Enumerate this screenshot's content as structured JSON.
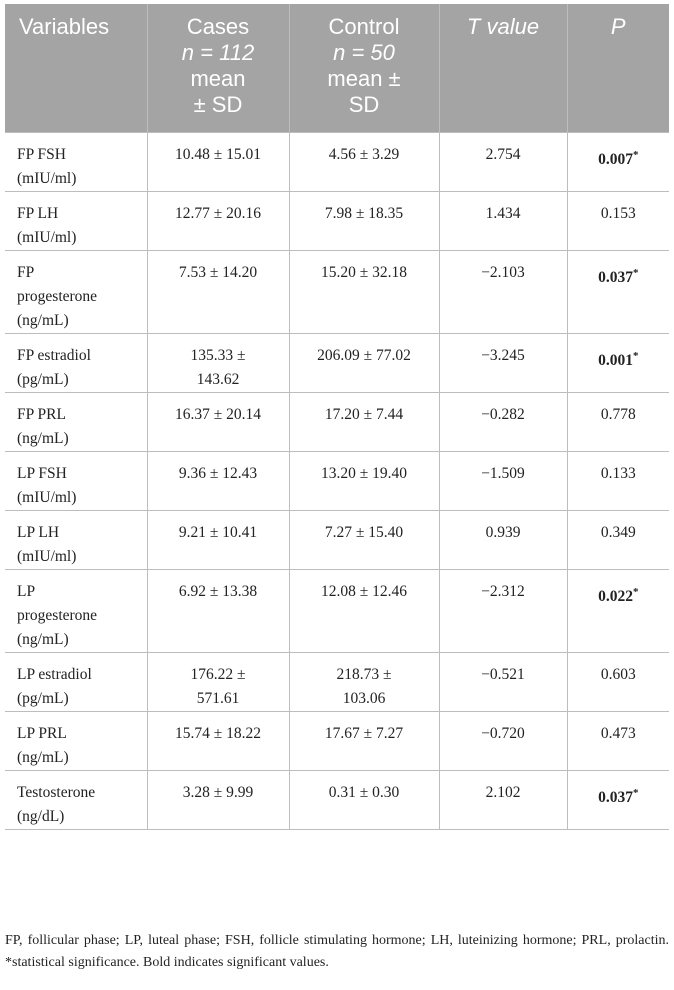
{
  "header": {
    "variables": "Variables",
    "cases": {
      "l1": "Cases",
      "l2": "n = 112",
      "l3": "mean",
      "l4": "± SD"
    },
    "control": {
      "l1": "Control",
      "l2": "n = 50",
      "l3": "mean ±",
      "l4": "SD"
    },
    "tvalue": "T value",
    "p": "P"
  },
  "rows": [
    {
      "variable": [
        "FP FSH",
        "(mIU/ml)"
      ],
      "cases": [
        "10.48 ± 15.01"
      ],
      "control": [
        "4.56 ± 3.29"
      ],
      "t": "2.754",
      "p": "0.007",
      "sig": true
    },
    {
      "variable": [
        "FP LH",
        "(mIU/ml)"
      ],
      "cases": [
        "12.77 ± 20.16"
      ],
      "control": [
        "7.98 ± 18.35"
      ],
      "t": "1.434",
      "p": "0.153",
      "sig": false
    },
    {
      "variable": [
        "FP",
        "progesterone",
        "(ng/mL)"
      ],
      "cases": [
        "7.53 ± 14.20"
      ],
      "control": [
        "15.20 ± 32.18"
      ],
      "t": "−2.103",
      "p": "0.037",
      "sig": true
    },
    {
      "variable": [
        "FP estradiol",
        "(pg/mL)"
      ],
      "cases": [
        "135.33 ±",
        "143.62"
      ],
      "control": [
        "206.09 ± 77.02"
      ],
      "t": "−3.245",
      "p": "0.001",
      "sig": true
    },
    {
      "variable": [
        "FP PRL",
        "(ng/mL)"
      ],
      "cases": [
        "16.37 ± 20.14"
      ],
      "control": [
        "17.20 ± 7.44"
      ],
      "t": "−0.282",
      "p": "0.778",
      "sig": false
    },
    {
      "variable": [
        "LP FSH",
        "(mIU/ml)"
      ],
      "cases": [
        "9.36 ± 12.43"
      ],
      "control": [
        "13.20 ± 19.40"
      ],
      "t": "−1.509",
      "p": "0.133",
      "sig": false
    },
    {
      "variable": [
        "LP LH",
        "(mIU/ml)"
      ],
      "cases": [
        "9.21 ± 10.41"
      ],
      "control": [
        "7.27 ± 15.40"
      ],
      "t": "0.939",
      "p": "0.349",
      "sig": false
    },
    {
      "variable": [
        "LP",
        "progesterone",
        "(ng/mL)"
      ],
      "cases": [
        "6.92 ± 13.38"
      ],
      "control": [
        "12.08 ± 12.46"
      ],
      "t": "−2.312",
      "p": "0.022",
      "sig": true
    },
    {
      "variable": [
        "LP estradiol",
        "(pg/mL)"
      ],
      "cases": [
        "176.22 ±",
        "571.61"
      ],
      "control": [
        "218.73 ±",
        "103.06"
      ],
      "t": "−0.521",
      "p": "0.603",
      "sig": false
    },
    {
      "variable": [
        "LP PRL",
        "(ng/mL)"
      ],
      "cases": [
        "15.74 ± 18.22"
      ],
      "control": [
        "17.67 ± 7.27"
      ],
      "t": "−0.720",
      "p": "0.473",
      "sig": false
    },
    {
      "variable": [
        "Testosterone",
        "(ng/dL)"
      ],
      "cases": [
        "3.28 ± 9.99"
      ],
      "control": [
        "0.31 ± 0.30"
      ],
      "t": "2.102",
      "p": "0.037",
      "sig": true
    }
  ],
  "sig_marker": "*",
  "row_heights": [
    57,
    57,
    81,
    57,
    57,
    57,
    57,
    81,
    57,
    57,
    57
  ],
  "footnote": "FP, follicular phase; LP, luteal phase; FSH, follicle stimulating hormone; LH, luteinizing hormone; PRL, prolactin. *statistical significance. Bold indicates significant values."
}
